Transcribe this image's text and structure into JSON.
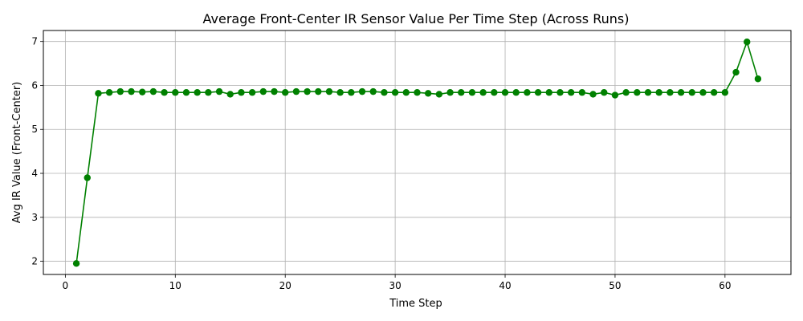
{
  "chart_data": {
    "type": "line",
    "title": "Average Front-Center IR Sensor Value Per Time Step (Across Runs)",
    "xlabel": "Time Step",
    "ylabel": "Avg IR Value (Front-Center)",
    "xlim": [
      -2,
      66
    ],
    "ylim": [
      1.7,
      7.25
    ],
    "xticks": [
      0,
      10,
      20,
      30,
      40,
      50,
      60
    ],
    "yticks": [
      2,
      3,
      4,
      5,
      6,
      7
    ],
    "grid": true,
    "legend": "none",
    "series": [
      {
        "color": "#008000",
        "marker": "circle",
        "x": [
          1,
          2,
          3,
          4,
          5,
          6,
          7,
          8,
          9,
          10,
          11,
          12,
          13,
          14,
          15,
          16,
          17,
          18,
          19,
          20,
          21,
          22,
          23,
          24,
          25,
          26,
          27,
          28,
          29,
          30,
          31,
          32,
          33,
          34,
          35,
          36,
          37,
          38,
          39,
          40,
          41,
          42,
          43,
          44,
          45,
          46,
          47,
          48,
          49,
          50,
          51,
          52,
          53,
          54,
          55,
          56,
          57,
          58,
          59,
          60,
          61,
          62,
          63
        ],
        "y": [
          1.95,
          3.9,
          5.82,
          5.84,
          5.86,
          5.86,
          5.85,
          5.86,
          5.84,
          5.84,
          5.84,
          5.84,
          5.84,
          5.86,
          5.8,
          5.84,
          5.84,
          5.86,
          5.86,
          5.84,
          5.86,
          5.86,
          5.86,
          5.86,
          5.84,
          5.84,
          5.86,
          5.86,
          5.84,
          5.84,
          5.84,
          5.84,
          5.82,
          5.8,
          5.84,
          5.84,
          5.84,
          5.84,
          5.84,
          5.84,
          5.84,
          5.84,
          5.84,
          5.84,
          5.84,
          5.84,
          5.84,
          5.8,
          5.84,
          5.78,
          5.84,
          5.84,
          5.84,
          5.84,
          5.84,
          5.84,
          5.84,
          5.84,
          5.84,
          5.84,
          6.3,
          6.99,
          6.15
        ]
      }
    ]
  }
}
